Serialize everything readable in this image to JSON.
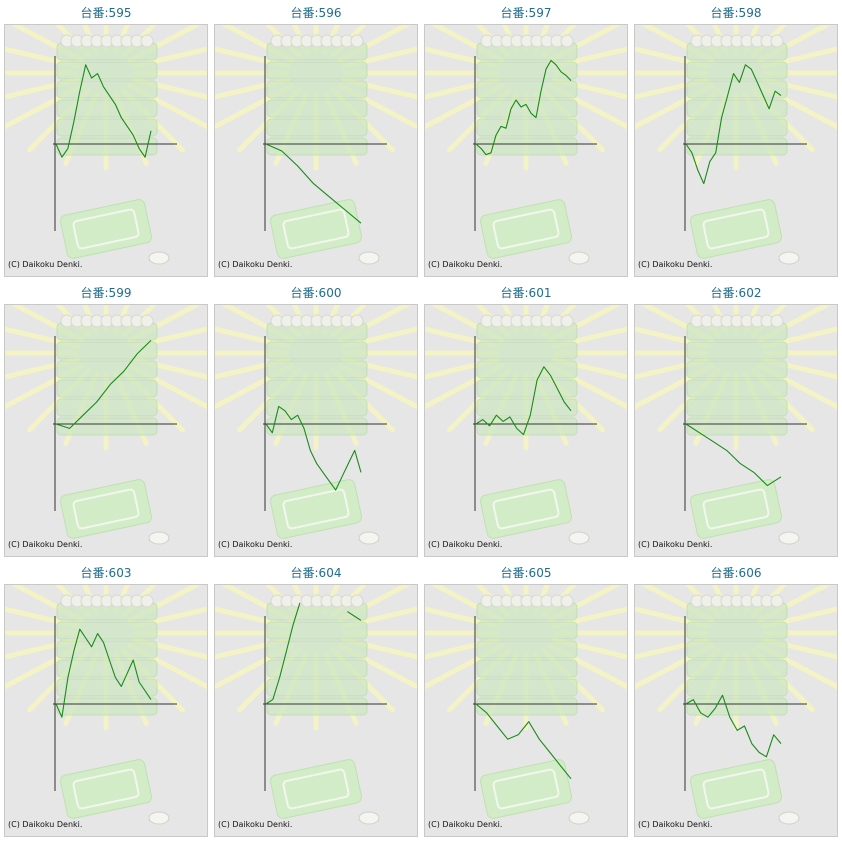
{
  "labels": {
    "title_prefix": "台番:",
    "copyright": "(C) Daikoku Denki."
  },
  "colors": {
    "line": "#1a8a1a",
    "axis": "#333333",
    "panel_bg": "#e6e6e6",
    "title": "#1f6d8f"
  },
  "chart_data": [
    {
      "type": "line",
      "title": "台番:595",
      "machine": "595",
      "values": [
        0,
        -0.15,
        -0.05,
        0.25,
        0.6,
        0.9,
        0.75,
        0.8,
        0.65,
        0.55,
        0.45,
        0.3,
        0.2,
        0.1,
        -0.05,
        -0.15,
        0.15
      ]
    },
    {
      "type": "line",
      "title": "台番:596",
      "machine": "596",
      "values": [
        0,
        -0.08,
        -0.25,
        -0.45,
        -0.6,
        -0.75,
        -0.9
      ]
    },
    {
      "type": "line",
      "title": "台番:597",
      "machine": "597",
      "values": [
        0,
        -0.05,
        -0.12,
        -0.1,
        0.1,
        0.2,
        0.18,
        0.4,
        0.5,
        0.42,
        0.45,
        0.35,
        0.3,
        0.6,
        0.85,
        0.95,
        0.9,
        0.82,
        0.78,
        0.72
      ]
    },
    {
      "type": "line",
      "title": "台番:598",
      "machine": "598",
      "values": [
        0,
        -0.1,
        -0.3,
        -0.45,
        -0.2,
        -0.1,
        0.3,
        0.55,
        0.8,
        0.7,
        0.9,
        0.85,
        0.7,
        0.55,
        0.4,
        0.6,
        0.55
      ]
    },
    {
      "type": "line",
      "title": "台番:599",
      "machine": "599",
      "values": [
        0,
        -0.05,
        0.1,
        0.25,
        0.45,
        0.6,
        0.8,
        0.95
      ]
    },
    {
      "type": "line",
      "title": "台番:600",
      "machine": "600",
      "values": [
        0,
        -0.1,
        0.2,
        0.15,
        0.05,
        0.1,
        -0.05,
        -0.3,
        -0.45,
        -0.55,
        -0.65,
        -0.75,
        -0.6,
        -0.45,
        -0.3,
        -0.55
      ]
    },
    {
      "type": "line",
      "title": "台番:601",
      "machine": "601",
      "values": [
        0,
        0.05,
        -0.02,
        0.1,
        0.03,
        0.08,
        -0.05,
        -0.12,
        0.1,
        0.5,
        0.65,
        0.55,
        0.4,
        0.25,
        0.15
      ]
    },
    {
      "type": "line",
      "title": "台番:602",
      "machine": "602",
      "values": [
        0,
        -0.1,
        -0.2,
        -0.3,
        -0.45,
        -0.55,
        -0.7,
        -0.6
      ]
    },
    {
      "type": "line",
      "title": "台番:603",
      "machine": "603",
      "values": [
        0,
        -0.15,
        0.3,
        0.6,
        0.85,
        0.75,
        0.65,
        0.8,
        0.7,
        0.5,
        0.3,
        0.2,
        0.35,
        0.5,
        0.25,
        0.15,
        0.05
      ]
    },
    {
      "type": "line",
      "title": "台番:604",
      "machine": "604",
      "values": [
        0,
        0.05,
        0.3,
        0.6,
        0.9,
        1.15,
        null,
        null,
        null,
        null,
        null,
        null,
        1.05,
        1.0,
        0.95
      ]
    },
    {
      "type": "line",
      "title": "台番:605",
      "machine": "605",
      "values": [
        0,
        -0.1,
        -0.25,
        -0.4,
        -0.35,
        -0.2,
        -0.4,
        -0.55,
        -0.7,
        -0.85
      ]
    },
    {
      "type": "line",
      "title": "台番:606",
      "machine": "606",
      "values": [
        0,
        0.05,
        -0.1,
        -0.15,
        -0.05,
        0.1,
        -0.15,
        -0.3,
        -0.25,
        -0.45,
        -0.55,
        -0.6,
        -0.35,
        -0.45
      ]
    }
  ]
}
